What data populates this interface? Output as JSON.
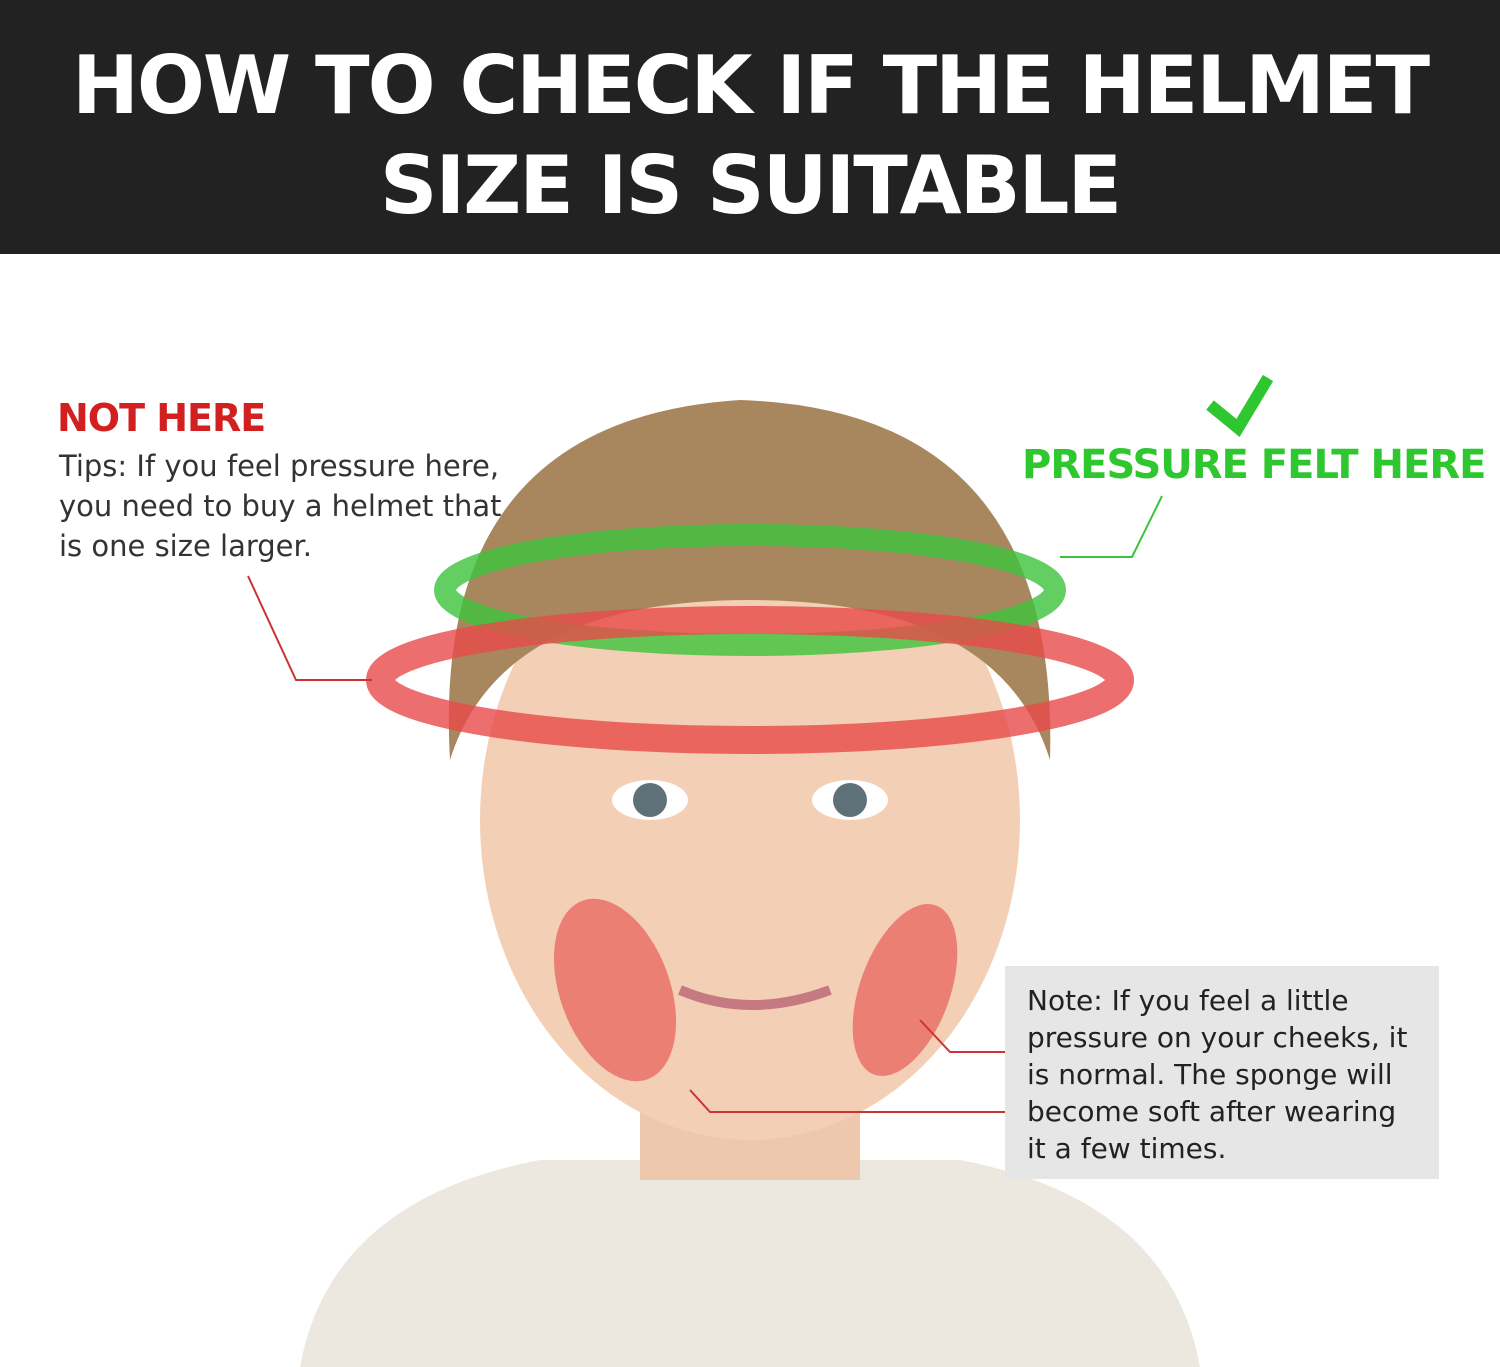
{
  "title": "HOW TO CHECK IF THE HELMET SIZE IS SUITABLE",
  "not_here": {
    "heading": "NOT HERE",
    "text": "Tips: If you feel pressure here, you need to buy a helmet that is one size larger.",
    "color": "#d21f1f"
  },
  "pressure": {
    "heading": "PRESSURE FELT HERE",
    "icon": "checkmark-icon",
    "color": "#2fc72f"
  },
  "note": {
    "text": "Note: If you feel a little pressure on your cheeks, it is normal. The sponge will become soft after wearing it a few times."
  }
}
